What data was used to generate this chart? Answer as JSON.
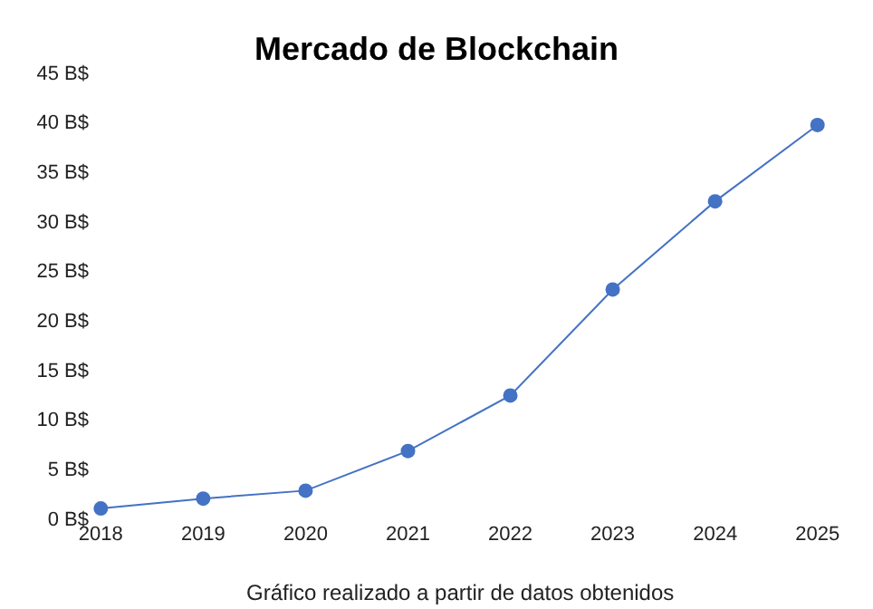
{
  "chart_data": {
    "type": "line",
    "title": "Mercado de Blockchain",
    "categories": [
      "2018",
      "2019",
      "2020",
      "2021",
      "2022",
      "2023",
      "2024",
      "2025"
    ],
    "series": [
      {
        "color": "#4472c4",
        "values": [
          1.0,
          2.0,
          2.8,
          6.8,
          12.4,
          23.1,
          32.0,
          39.7
        ]
      }
    ],
    "ylim": [
      0,
      45
    ],
    "yticks": [
      {
        "value": 0,
        "label": "0 B$"
      },
      {
        "value": 5,
        "label": "5 B$"
      },
      {
        "value": 10,
        "label": "10 B$"
      },
      {
        "value": 15,
        "label": "15 B$"
      },
      {
        "value": 20,
        "label": "20 B$"
      },
      {
        "value": 25,
        "label": "25 B$"
      },
      {
        "value": 30,
        "label": "30 B$"
      },
      {
        "value": 35,
        "label": "35 B$"
      },
      {
        "value": 40,
        "label": "40 B$"
      },
      {
        "value": 45,
        "label": "45 B$"
      }
    ],
    "marker": "circle",
    "annotations": [
      "Gráfico realizado a partir de datos obtenidos"
    ]
  }
}
